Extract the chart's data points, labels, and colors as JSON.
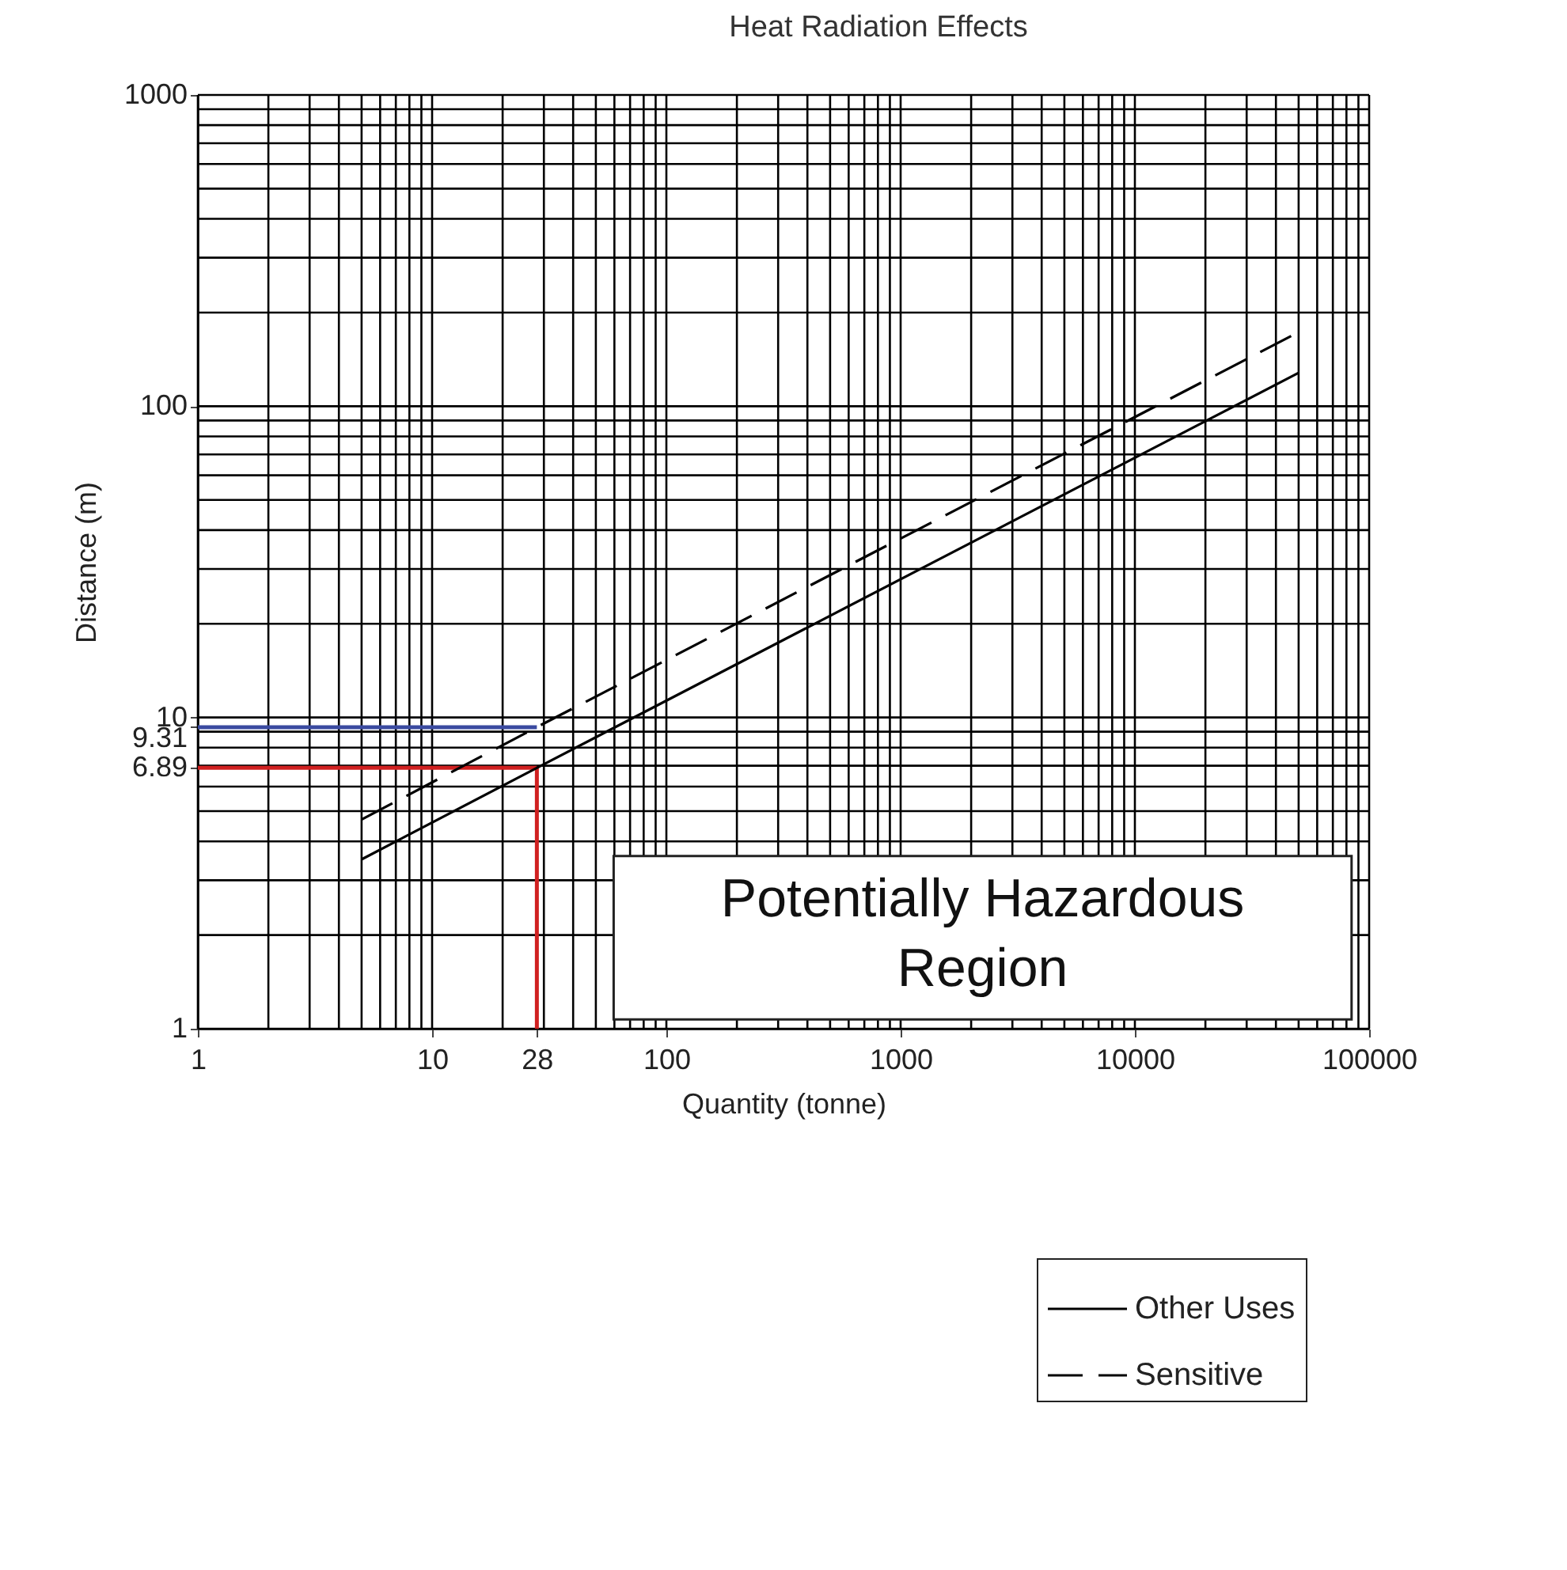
{
  "chart_data": {
    "type": "line",
    "title": "Heat Radiation Effects",
    "xlabel": "Quantity (tonne)",
    "ylabel": "Distance (m)",
    "log": "xy",
    "xlim": [
      1,
      100000
    ],
    "ylim": [
      1,
      1000
    ],
    "xticks": [
      1,
      10,
      28,
      100,
      1000,
      10000,
      100000
    ],
    "yticks": [
      1,
      6.89,
      9.31,
      10,
      100,
      1000
    ],
    "grid": true,
    "legend": "bottom right",
    "series": [
      {
        "name": "Other Uses",
        "color": "#000000",
        "line_style": "solid",
        "x": [
          5,
          28,
          50000
        ],
        "values": [
          3.5,
          6.89,
          128
        ]
      },
      {
        "name": "Sensitive",
        "color": "#000000",
        "line_style": "dashed",
        "x": [
          5,
          28,
          50000
        ],
        "values": [
          4.7,
          9.31,
          173
        ]
      }
    ],
    "ref_lines": [
      {
        "axis": "y",
        "value": 9.31,
        "color": "#3a4aa0"
      },
      {
        "axis": "y",
        "value": 6.89,
        "color": "#d02020"
      },
      {
        "axis": "x",
        "value": 28,
        "color": "#d02020"
      }
    ],
    "annotations": [
      "Potentially Hazardous Region"
    ]
  }
}
